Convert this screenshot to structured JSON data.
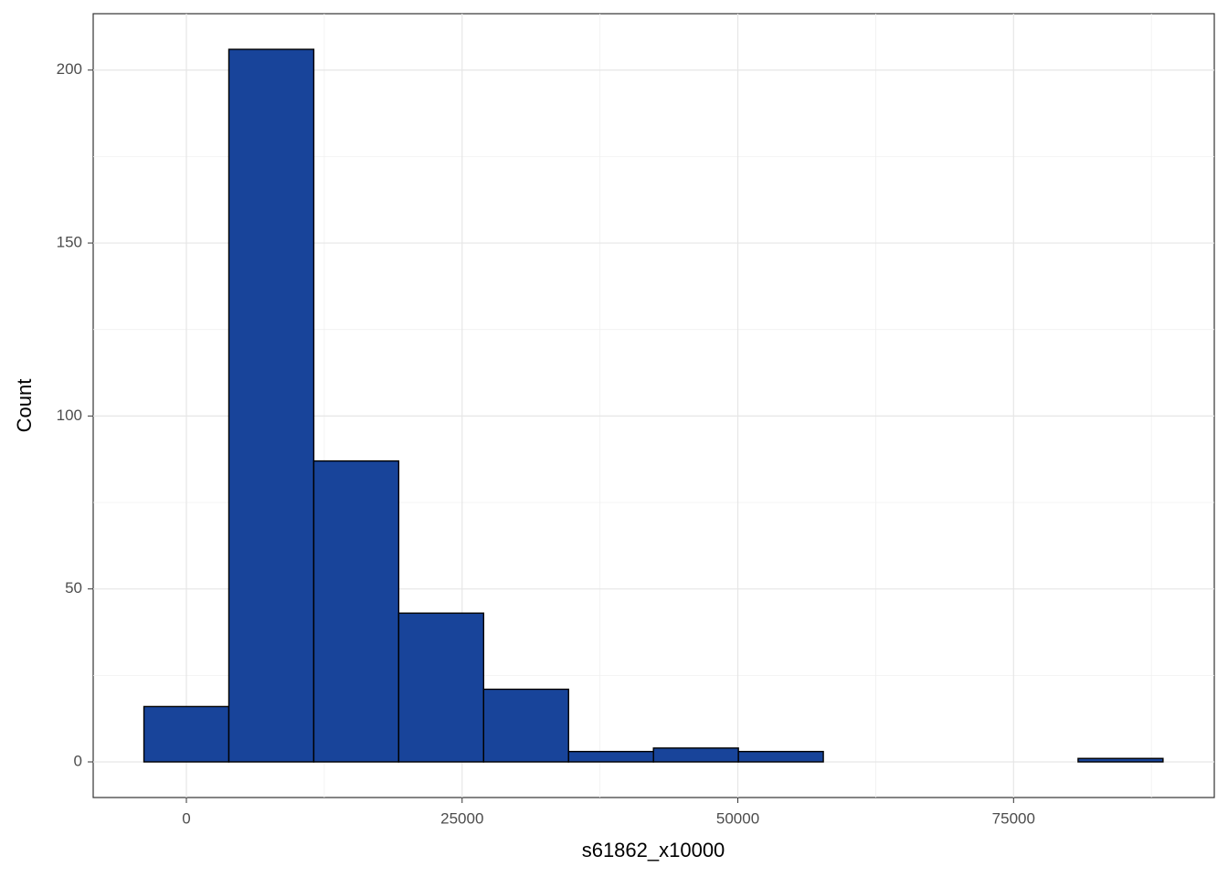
{
  "chart_data": {
    "type": "histogram",
    "x_label": "s61862_x10000",
    "y_label": "Count",
    "bins": [
      -3850,
      3850,
      11550,
      19250,
      26950,
      34650,
      42350,
      50050,
      57750,
      65450,
      73150,
      80850,
      88550
    ],
    "values": [
      16,
      206,
      87,
      43,
      21,
      3,
      4,
      3,
      0,
      0,
      0,
      1
    ],
    "color": "#18449a",
    "edge_color": "#000000",
    "xlim": [
      -8450,
      93200
    ],
    "xticks": [
      0,
      25000,
      50000,
      75000
    ],
    "ylim": [
      -10.3,
      216.3
    ],
    "yticks": [
      0,
      50,
      100,
      150,
      200
    ],
    "grid": true
  }
}
